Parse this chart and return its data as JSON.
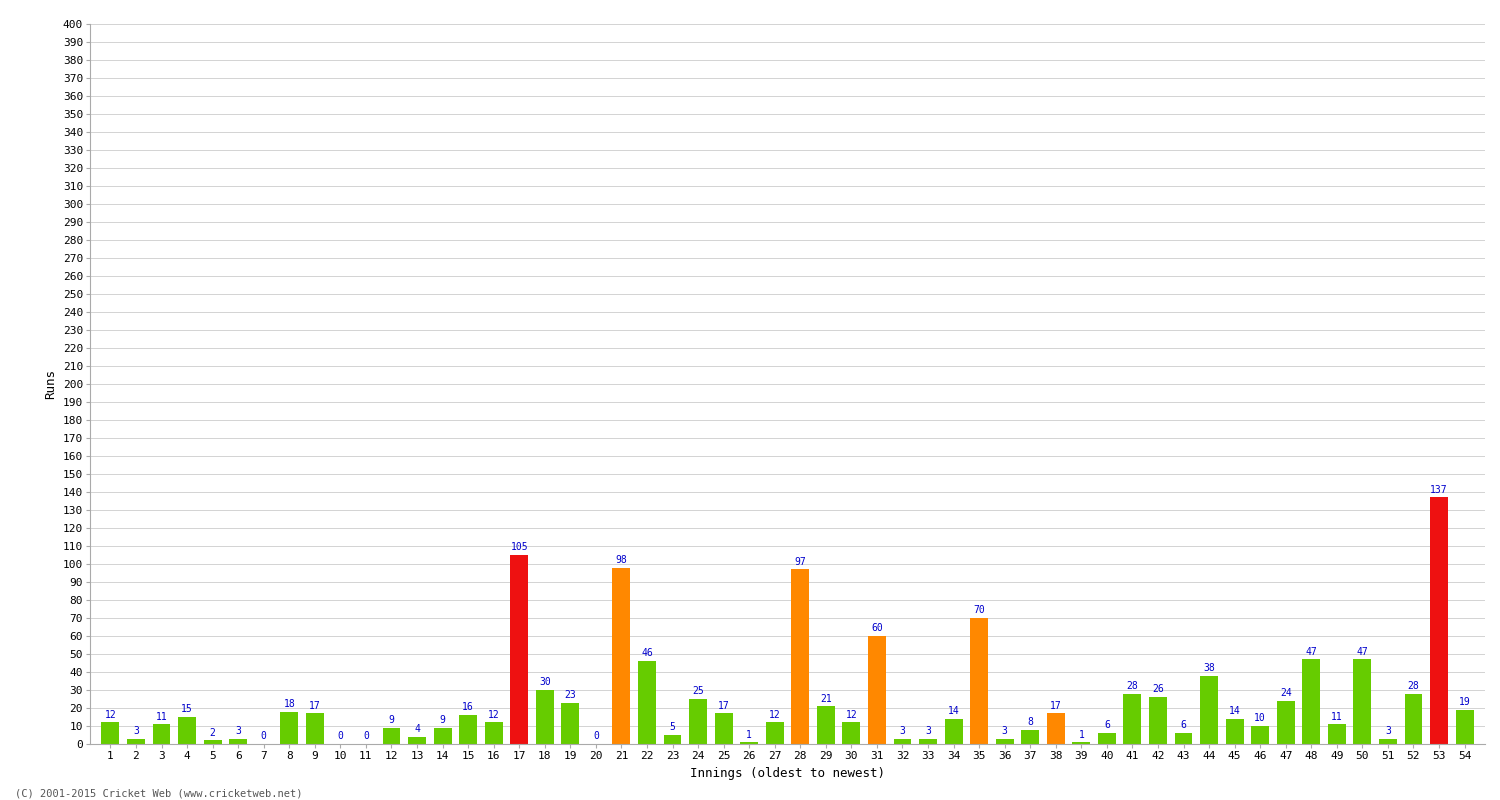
{
  "innings": [
    1,
    2,
    3,
    4,
    5,
    6,
    7,
    8,
    9,
    10,
    11,
    12,
    13,
    14,
    15,
    16,
    17,
    18,
    19,
    20,
    21,
    22,
    23,
    24,
    25,
    26,
    27,
    28,
    29,
    30,
    31,
    32,
    33,
    34,
    35,
    36,
    37,
    38,
    39,
    40,
    41,
    42,
    43,
    44,
    45,
    46,
    47,
    48,
    49,
    50,
    51,
    52,
    53,
    54
  ],
  "values": [
    12,
    3,
    11,
    15,
    2,
    3,
    0,
    18,
    17,
    0,
    0,
    9,
    4,
    9,
    16,
    12,
    105,
    30,
    23,
    0,
    98,
    46,
    5,
    25,
    17,
    1,
    12,
    97,
    21,
    12,
    60,
    3,
    3,
    14,
    70,
    3,
    8,
    17,
    1,
    6,
    28,
    26,
    6,
    38,
    14,
    10,
    24,
    47,
    11,
    47,
    3,
    28,
    137,
    19
  ],
  "colors": [
    "#66cc00",
    "#66cc00",
    "#66cc00",
    "#66cc00",
    "#66cc00",
    "#66cc00",
    "#66cc00",
    "#66cc00",
    "#66cc00",
    "#66cc00",
    "#66cc00",
    "#66cc00",
    "#66cc00",
    "#66cc00",
    "#66cc00",
    "#66cc00",
    "#ee1111",
    "#66cc00",
    "#66cc00",
    "#66cc00",
    "#ff8800",
    "#66cc00",
    "#66cc00",
    "#66cc00",
    "#66cc00",
    "#66cc00",
    "#66cc00",
    "#ff8800",
    "#66cc00",
    "#66cc00",
    "#ff8800",
    "#66cc00",
    "#66cc00",
    "#66cc00",
    "#ff8800",
    "#66cc00",
    "#66cc00",
    "#ff8800",
    "#66cc00",
    "#66cc00",
    "#66cc00",
    "#66cc00",
    "#66cc00",
    "#66cc00",
    "#66cc00",
    "#66cc00",
    "#66cc00",
    "#66cc00",
    "#66cc00",
    "#66cc00",
    "#66cc00",
    "#66cc00",
    "#ee1111",
    "#66cc00"
  ],
  "xlabel": "Innings (oldest to newest)",
  "ylabel": "Runs",
  "ylim": [
    0,
    400
  ],
  "ytick_step": 10,
  "bg_color": "#ffffff",
  "plot_bg_color": "#ffffff",
  "grid_color": "#cccccc",
  "label_color": "#0000cc",
  "label_fontsize": 7,
  "axis_label_fontsize": 9,
  "tick_fontsize": 8,
  "footer": "(C) 2001-2015 Cricket Web (www.cricketweb.net)"
}
